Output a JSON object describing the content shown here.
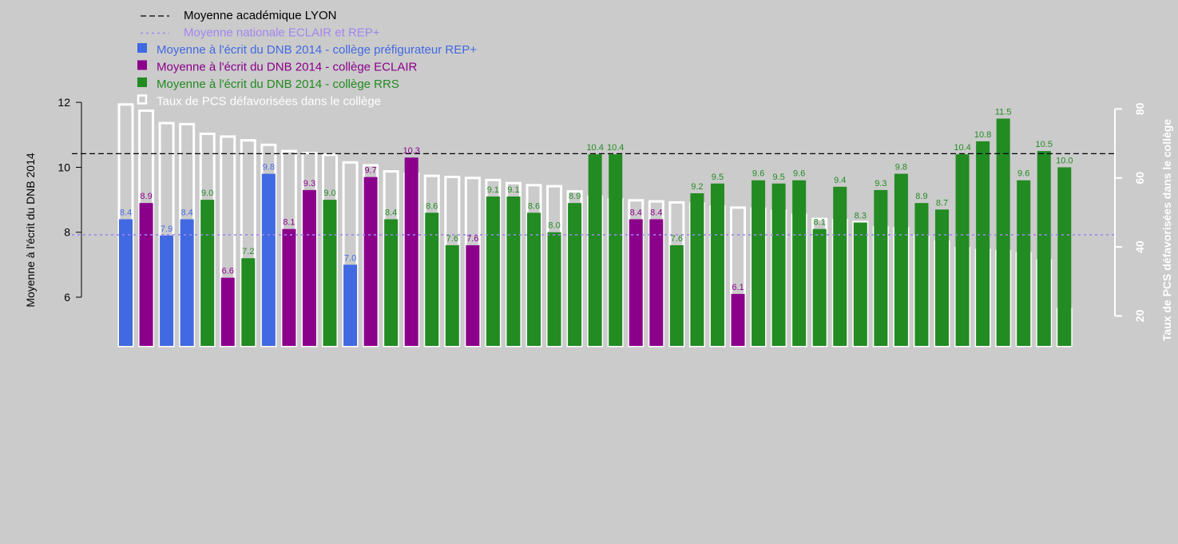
{
  "chart_data": {
    "type": "bar",
    "title": "",
    "ylabel_left": "Moyenne à l'écrit du DNB 2014",
    "ylabel_right": "Taux de PCS défavorisées dans le collège",
    "ylim_left": [
      4.5,
      12.2
    ],
    "yticks_left": [
      6,
      8,
      10,
      12
    ],
    "ylim_right": [
      11.3,
      83.8
    ],
    "yticks_right": [
      20,
      40,
      60,
      80
    ],
    "reference_lines": [
      {
        "name": "Moyenne académique LYON",
        "value": 10.42,
        "color": "#000000",
        "style": "dashed"
      },
      {
        "name": "Moyenne nationale ECLAIR et REP+",
        "value": 7.92,
        "color": "#9f86ee",
        "style": "dotted"
      }
    ],
    "legend": [
      {
        "label": "Moyenne académique LYON",
        "kind": "line-dashed",
        "color": "#000000"
      },
      {
        "label": "Moyenne nationale ECLAIR et REP+",
        "kind": "line-dotted",
        "color": "#9f86ee"
      },
      {
        "label": "Moyenne à l'écrit du DNB 2014 - collège préfigurateur REP+",
        "kind": "square",
        "color": "#4169e1"
      },
      {
        "label": "Moyenne à l'écrit du DNB 2014 - collège ECLAIR",
        "kind": "square",
        "color": "#8b008b"
      },
      {
        "label": "Moyenne à l'écrit du DNB 2014 - collège RRS",
        "kind": "square",
        "color": "#228b22"
      },
      {
        "label": "Taux de PCS défavorisées dans le collège",
        "kind": "outline",
        "color": "#ffffff"
      }
    ],
    "category_colors": {
      "REP+": "#4169e1",
      "ECLAIR": "#8b008b",
      "RRS": "#228b22"
    },
    "bars": [
      {
        "category": "REP+",
        "dnb": 8.4,
        "label": "8.4",
        "pcs": 81.3
      },
      {
        "category": "ECLAIR",
        "dnb": 8.9,
        "label": "8.9",
        "pcs": 79.5
      },
      {
        "category": "REP+",
        "dnb": 7.9,
        "label": "7.9",
        "pcs": 75.9
      },
      {
        "category": "REP+",
        "dnb": 8.4,
        "label": "8.4",
        "pcs": 75.6
      },
      {
        "category": "RRS",
        "dnb": 9.0,
        "label": "9.0",
        "pcs": 72.8
      },
      {
        "category": "ECLAIR",
        "dnb": 6.6,
        "label": "6.6",
        "pcs": 72.0
      },
      {
        "category": "RRS",
        "dnb": 7.2,
        "label": "7.2",
        "pcs": 70.9
      },
      {
        "category": "REP+",
        "dnb": 9.8,
        "label": "9.8",
        "pcs": 69.6
      },
      {
        "category": "ECLAIR",
        "dnb": 8.1,
        "label": "8.1",
        "pcs": 67.8
      },
      {
        "category": "ECLAIR",
        "dnb": 9.3,
        "label": "9.3",
        "pcs": 67.2
      },
      {
        "category": "RRS",
        "dnb": 9.0,
        "label": "9.0",
        "pcs": 66.7
      },
      {
        "category": "REP+",
        "dnb": 7.0,
        "label": "7.0",
        "pcs": 64.5
      },
      {
        "category": "ECLAIR",
        "dnb": 9.7,
        "label": "9.7",
        "pcs": 63.7
      },
      {
        "category": "RRS",
        "dnb": 8.4,
        "label": "8.4",
        "pcs": 61.9
      },
      {
        "category": "ECLAIR",
        "dnb": 10.3,
        "label": "10.3",
        "pcs": 61.2
      },
      {
        "category": "RRS",
        "dnb": 8.6,
        "label": "8.6",
        "pcs": 60.6
      },
      {
        "category": "RRS",
        "dnb": 7.6,
        "label": "7.6",
        "pcs": 60.3
      },
      {
        "category": "ECLAIR",
        "dnb": 7.6,
        "label": "7.6",
        "pcs": 60.0
      },
      {
        "category": "RRS",
        "dnb": 9.1,
        "label": "9.1",
        "pcs": 59.4
      },
      {
        "category": "RRS",
        "dnb": 9.1,
        "label": "9.1",
        "pcs": 58.5
      },
      {
        "category": "RRS",
        "dnb": 8.6,
        "label": "8.6",
        "pcs": 57.9
      },
      {
        "category": "RRS",
        "dnb": 8.0,
        "label": "8.0",
        "pcs": 57.6
      },
      {
        "category": "RRS",
        "dnb": 8.9,
        "label": "8.9",
        "pcs": 56.1
      },
      {
        "category": "RRS",
        "dnb": 10.4,
        "label": "10.4",
        "pcs": 54.6
      },
      {
        "category": "RRS",
        "dnb": 10.4,
        "label": "10.4",
        "pcs": 53.8
      },
      {
        "category": "ECLAIR",
        "dnb": 8.4,
        "label": "8.4",
        "pcs": 53.5
      },
      {
        "category": "ECLAIR",
        "dnb": 8.4,
        "label": "8.4",
        "pcs": 53.2
      },
      {
        "category": "RRS",
        "dnb": 7.6,
        "label": "7.6",
        "pcs": 52.9
      },
      {
        "category": "RRS",
        "dnb": 9.2,
        "label": "9.2",
        "pcs": 52.6
      },
      {
        "category": "RRS",
        "dnb": 9.5,
        "label": "9.5",
        "pcs": 51.7
      },
      {
        "category": "ECLAIR",
        "dnb": 6.1,
        "label": "6.1",
        "pcs": 51.4
      },
      {
        "category": "RRS",
        "dnb": 9.6,
        "label": "9.6",
        "pcs": 51.1
      },
      {
        "category": "RRS",
        "dnb": 9.5,
        "label": "9.5",
        "pcs": 50.5
      },
      {
        "category": "RRS",
        "dnb": 9.6,
        "label": "9.6",
        "pcs": 49.3
      },
      {
        "category": "RRS",
        "dnb": 8.1,
        "label": "8.1",
        "pcs": 48.1
      },
      {
        "category": "RRS",
        "dnb": 9.4,
        "label": "9.4",
        "pcs": 47.8
      },
      {
        "category": "RRS",
        "dnb": 8.3,
        "label": "8.3",
        "pcs": 47.2
      },
      {
        "category": "RRS",
        "dnb": 9.3,
        "label": "9.3",
        "pcs": 45.7
      },
      {
        "category": "RRS",
        "dnb": 9.8,
        "label": "9.8",
        "pcs": 45.4
      },
      {
        "category": "RRS",
        "dnb": 8.9,
        "label": "8.9",
        "pcs": 43.3
      },
      {
        "category": "RRS",
        "dnb": 8.7,
        "label": "8.7",
        "pcs": 41.5
      },
      {
        "category": "RRS",
        "dnb": 10.4,
        "label": "10.4",
        "pcs": 39.7
      },
      {
        "category": "RRS",
        "dnb": 10.8,
        "label": "10.8",
        "pcs": 39.1
      },
      {
        "category": "RRS",
        "dnb": 11.5,
        "label": "11.5",
        "pcs": 38.8
      },
      {
        "category": "RRS",
        "dnb": 9.6,
        "label": "9.6",
        "pcs": 38.2
      },
      {
        "category": "RRS",
        "dnb": 10.5,
        "label": "10.5",
        "pcs": 36.1
      },
      {
        "category": "RRS",
        "dnb": 10.0,
        "label": "10.0",
        "pcs": 22.0
      }
    ]
  }
}
